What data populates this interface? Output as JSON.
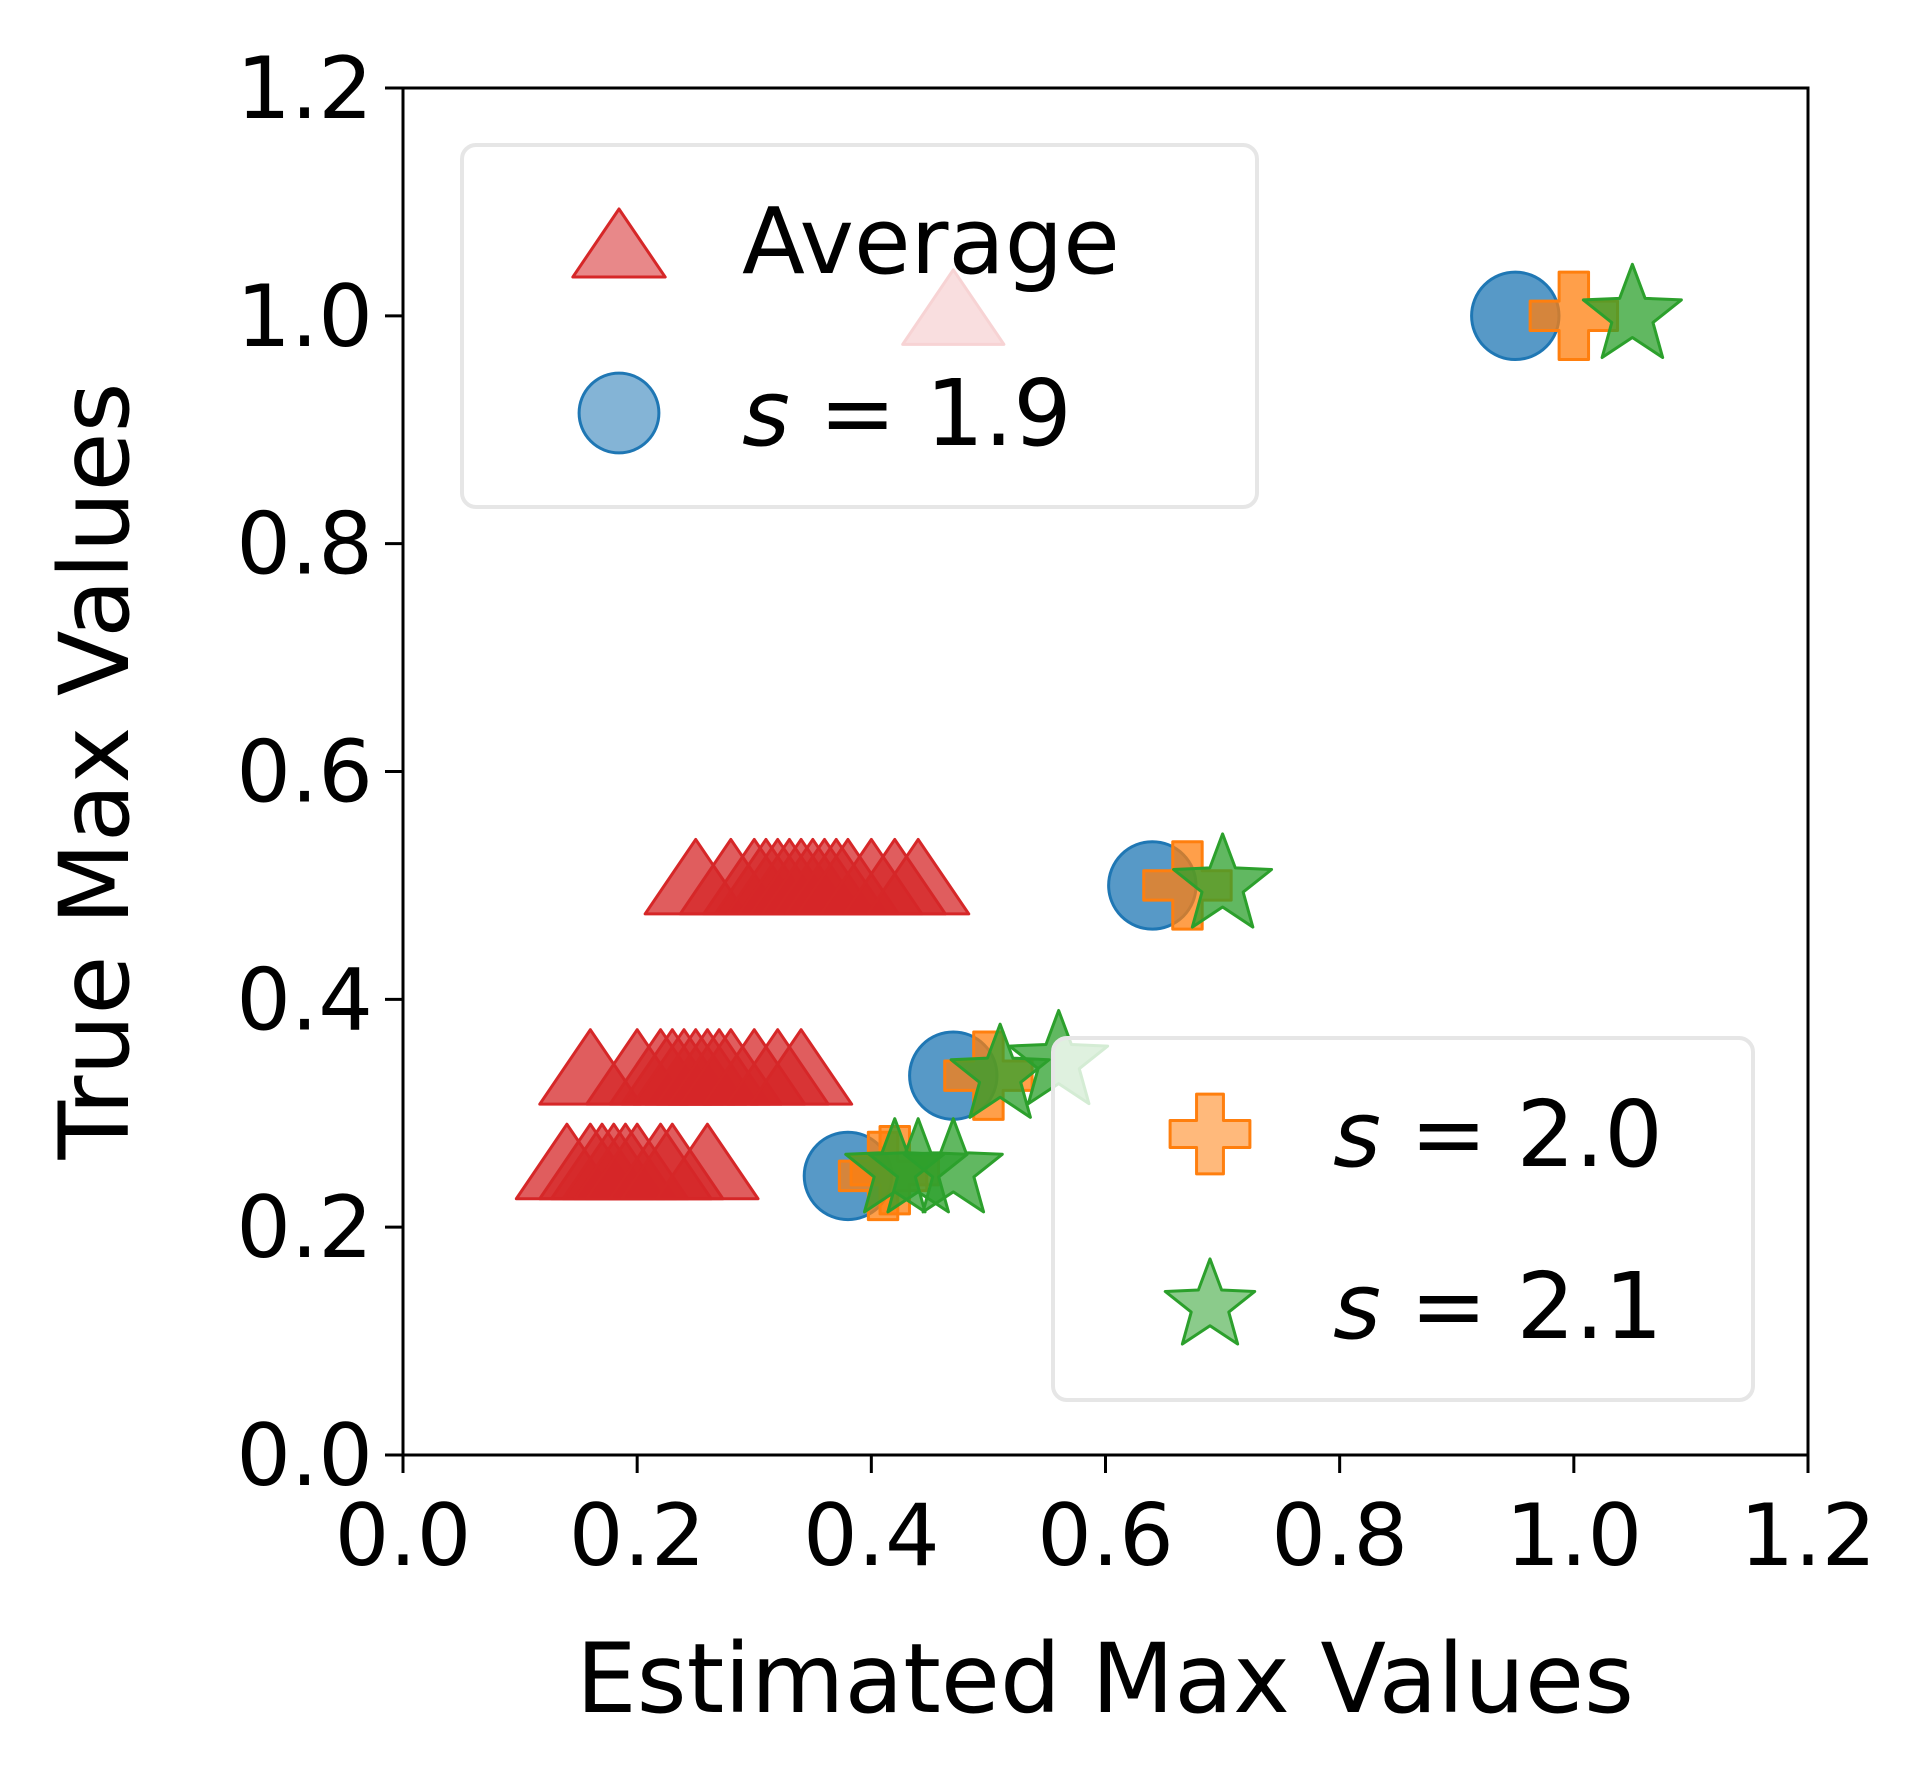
{
  "chart_data": {
    "type": "scatter",
    "xlabel": "Estimated Max Values",
    "ylabel": "True Max Values",
    "xlim": [
      0.0,
      1.2
    ],
    "ylim": [
      0.0,
      1.2
    ],
    "xticks": [
      "0.0",
      "0.2",
      "0.4",
      "0.6",
      "0.8",
      "1.0",
      "1.2"
    ],
    "yticks": [
      "0.0",
      "0.2",
      "0.4",
      "0.6",
      "0.8",
      "1.0",
      "1.2"
    ],
    "grid": false,
    "legends": [
      {
        "placement": "upper-left",
        "entries": [
          {
            "series": 0,
            "prefix": "",
            "label": "Average"
          },
          {
            "series": 1,
            "prefix": "s",
            "label": " = 1.9"
          }
        ]
      },
      {
        "placement": "lower-right",
        "entries": [
          {
            "series": 2,
            "prefix": "s",
            "label": " = 2.0"
          },
          {
            "series": 3,
            "prefix": "s",
            "label": " = 2.1"
          }
        ]
      }
    ],
    "series": [
      {
        "name": "Average",
        "marker": "triangle",
        "color": "#d62728",
        "points": [
          [
            0.47,
            1.0
          ],
          [
            0.25,
            0.5
          ],
          [
            0.28,
            0.5
          ],
          [
            0.3,
            0.5
          ],
          [
            0.31,
            0.5
          ],
          [
            0.32,
            0.5
          ],
          [
            0.33,
            0.5
          ],
          [
            0.34,
            0.5
          ],
          [
            0.35,
            0.5
          ],
          [
            0.36,
            0.5
          ],
          [
            0.37,
            0.5
          ],
          [
            0.38,
            0.5
          ],
          [
            0.4,
            0.5
          ],
          [
            0.42,
            0.5
          ],
          [
            0.44,
            0.5
          ],
          [
            0.16,
            0.333
          ],
          [
            0.2,
            0.333
          ],
          [
            0.22,
            0.333
          ],
          [
            0.23,
            0.333
          ],
          [
            0.24,
            0.333
          ],
          [
            0.25,
            0.333
          ],
          [
            0.26,
            0.333
          ],
          [
            0.27,
            0.333
          ],
          [
            0.28,
            0.333
          ],
          [
            0.3,
            0.333
          ],
          [
            0.32,
            0.333
          ],
          [
            0.34,
            0.333
          ],
          [
            0.14,
            0.25
          ],
          [
            0.16,
            0.25
          ],
          [
            0.17,
            0.25
          ],
          [
            0.18,
            0.25
          ],
          [
            0.19,
            0.25
          ],
          [
            0.2,
            0.25
          ],
          [
            0.22,
            0.25
          ],
          [
            0.23,
            0.25
          ],
          [
            0.26,
            0.25
          ]
        ]
      },
      {
        "name": "s = 1.9",
        "marker": "circle",
        "color": "#1f77b4",
        "points": [
          [
            0.95,
            1.0
          ],
          [
            0.64,
            0.5
          ],
          [
            0.47,
            0.333
          ],
          [
            0.38,
            0.245
          ]
        ]
      },
      {
        "name": "s = 2.0",
        "marker": "plus",
        "color": "#ff7f0e",
        "points": [
          [
            1.0,
            1.0
          ],
          [
            0.67,
            0.5
          ],
          [
            0.5,
            0.333
          ],
          [
            0.41,
            0.245
          ],
          [
            0.42,
            0.25
          ]
        ]
      },
      {
        "name": "s = 2.1",
        "marker": "star",
        "color": "#2ca02c",
        "points": [
          [
            1.05,
            1.0
          ],
          [
            0.7,
            0.5
          ],
          [
            0.51,
            0.333
          ],
          [
            0.56,
            0.345
          ],
          [
            0.42,
            0.25
          ],
          [
            0.44,
            0.25
          ],
          [
            0.47,
            0.25
          ]
        ]
      }
    ]
  }
}
